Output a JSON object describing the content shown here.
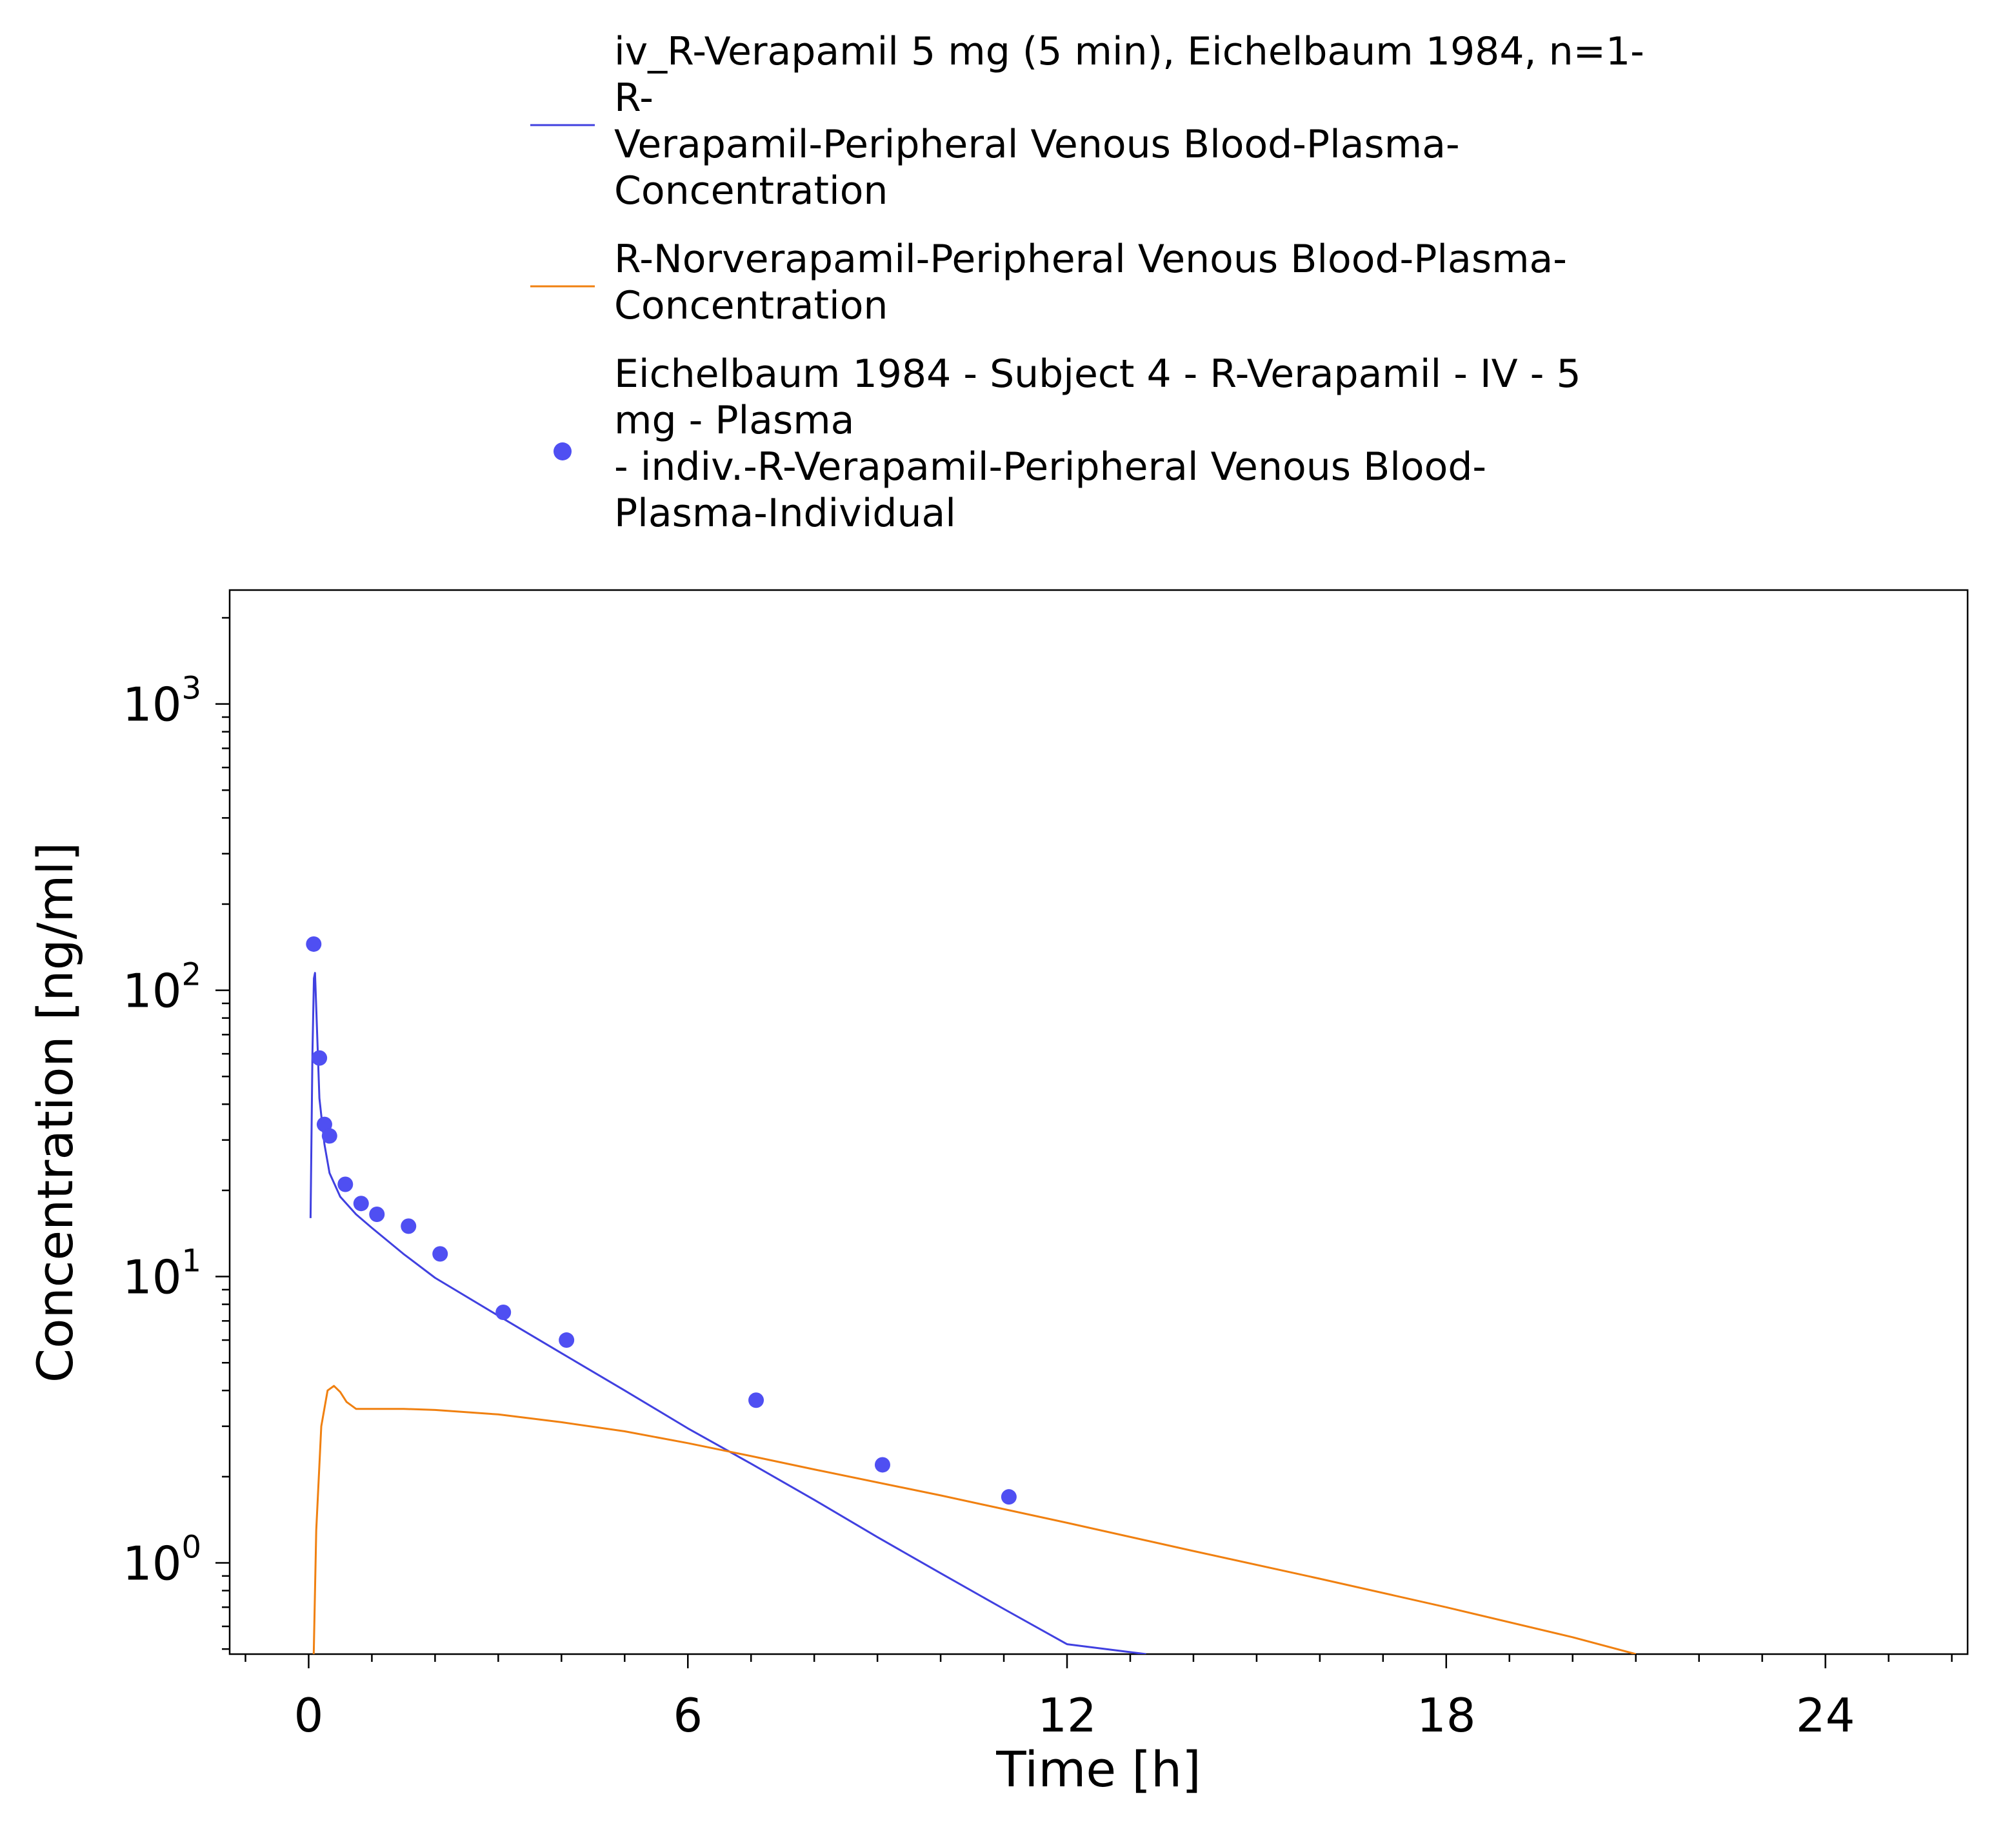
{
  "chart_data": {
    "type": "line",
    "title": "",
    "xlabel": "Time [h]",
    "ylabel": "Concentration [ng/ml]",
    "x_scale": "linear",
    "y_scale": "log",
    "xlim": [
      -1.25,
      26.25
    ],
    "ylim": [
      0.48,
      2500
    ],
    "x_ticks": [
      0,
      6,
      12,
      18,
      24
    ],
    "y_ticks": [
      {
        "value": 1,
        "base": "10",
        "exp": "0"
      },
      {
        "value": 10,
        "base": "10",
        "exp": "1"
      },
      {
        "value": 100,
        "base": "10",
        "exp": "2"
      },
      {
        "value": 1000,
        "base": "10",
        "exp": "3"
      }
    ],
    "grid": false,
    "legend_position": "top",
    "series": [
      {
        "name": "iv_R-Verapamil 5 mg (5 min), Eichelbaum 1984, n=1-R-Verapamil-Peripheral Venous Blood-Plasma-Concentration",
        "legend_lines": [
          "iv_R-Verapamil 5 mg (5 min), Eichelbaum 1984, n=1-",
          "R-",
          "Verapamil-Peripheral Venous Blood-Plasma-",
          "Concentration"
        ],
        "kind": "line",
        "color": "#4040e0",
        "x": [
          0.03,
          0.06,
          0.083,
          0.1,
          0.13,
          0.17,
          0.25,
          0.33,
          0.5,
          0.75,
          1,
          1.5,
          2,
          3,
          4,
          5,
          6,
          7,
          8,
          9,
          10,
          11,
          12,
          13.25
        ],
        "y": [
          16,
          60,
          110,
          115,
          75,
          42,
          29,
          23,
          19,
          16.5,
          14.8,
          12,
          9.9,
          7.3,
          5.4,
          4.0,
          2.95,
          2.22,
          1.66,
          1.23,
          0.92,
          0.69,
          0.52,
          0.48
        ]
      },
      {
        "name": "R-Norverapamil-Peripheral Venous Blood-Plasma-Concentration",
        "legend_lines": [
          "R-Norverapamil-Peripheral Venous Blood-Plasma-",
          "Concentration"
        ],
        "kind": "line",
        "color": "#f08010",
        "x": [
          0.08,
          0.12,
          0.2,
          0.3,
          0.4,
          0.5,
          0.6,
          0.75,
          1,
          1.5,
          2,
          3,
          4,
          5,
          6,
          7,
          8,
          10,
          12,
          14,
          16,
          18,
          20,
          21
        ],
        "y": [
          0.48,
          1.3,
          3.0,
          4.0,
          4.15,
          3.95,
          3.65,
          3.45,
          3.45,
          3.45,
          3.42,
          3.3,
          3.1,
          2.88,
          2.62,
          2.36,
          2.12,
          1.72,
          1.38,
          1.1,
          0.88,
          0.7,
          0.55,
          0.48
        ]
      },
      {
        "name": "Eichelbaum 1984 - Subject 4 - R-Verapamil - IV - 5 mg - Plasma - indiv.-R-Verapamil-Peripheral Venous Blood-Plasma-Individual",
        "legend_lines": [
          "Eichelbaum 1984 - Subject 4 - R-Verapamil - IV - 5",
          "mg - Plasma",
          "- indiv.-R-Verapamil-Peripheral Venous Blood-",
          "Plasma-Individual"
        ],
        "kind": "scatter",
        "color": "#4f4ff2",
        "x": [
          0.08,
          0.17,
          0.25,
          0.33,
          0.58,
          0.83,
          1.08,
          1.58,
          2.08,
          3.08,
          4.08,
          7.08,
          9.08,
          11.08
        ],
        "y": [
          145,
          58,
          34,
          31,
          21,
          18,
          16.5,
          15,
          12,
          7.5,
          6,
          3.7,
          2.2,
          1.7
        ]
      }
    ]
  }
}
